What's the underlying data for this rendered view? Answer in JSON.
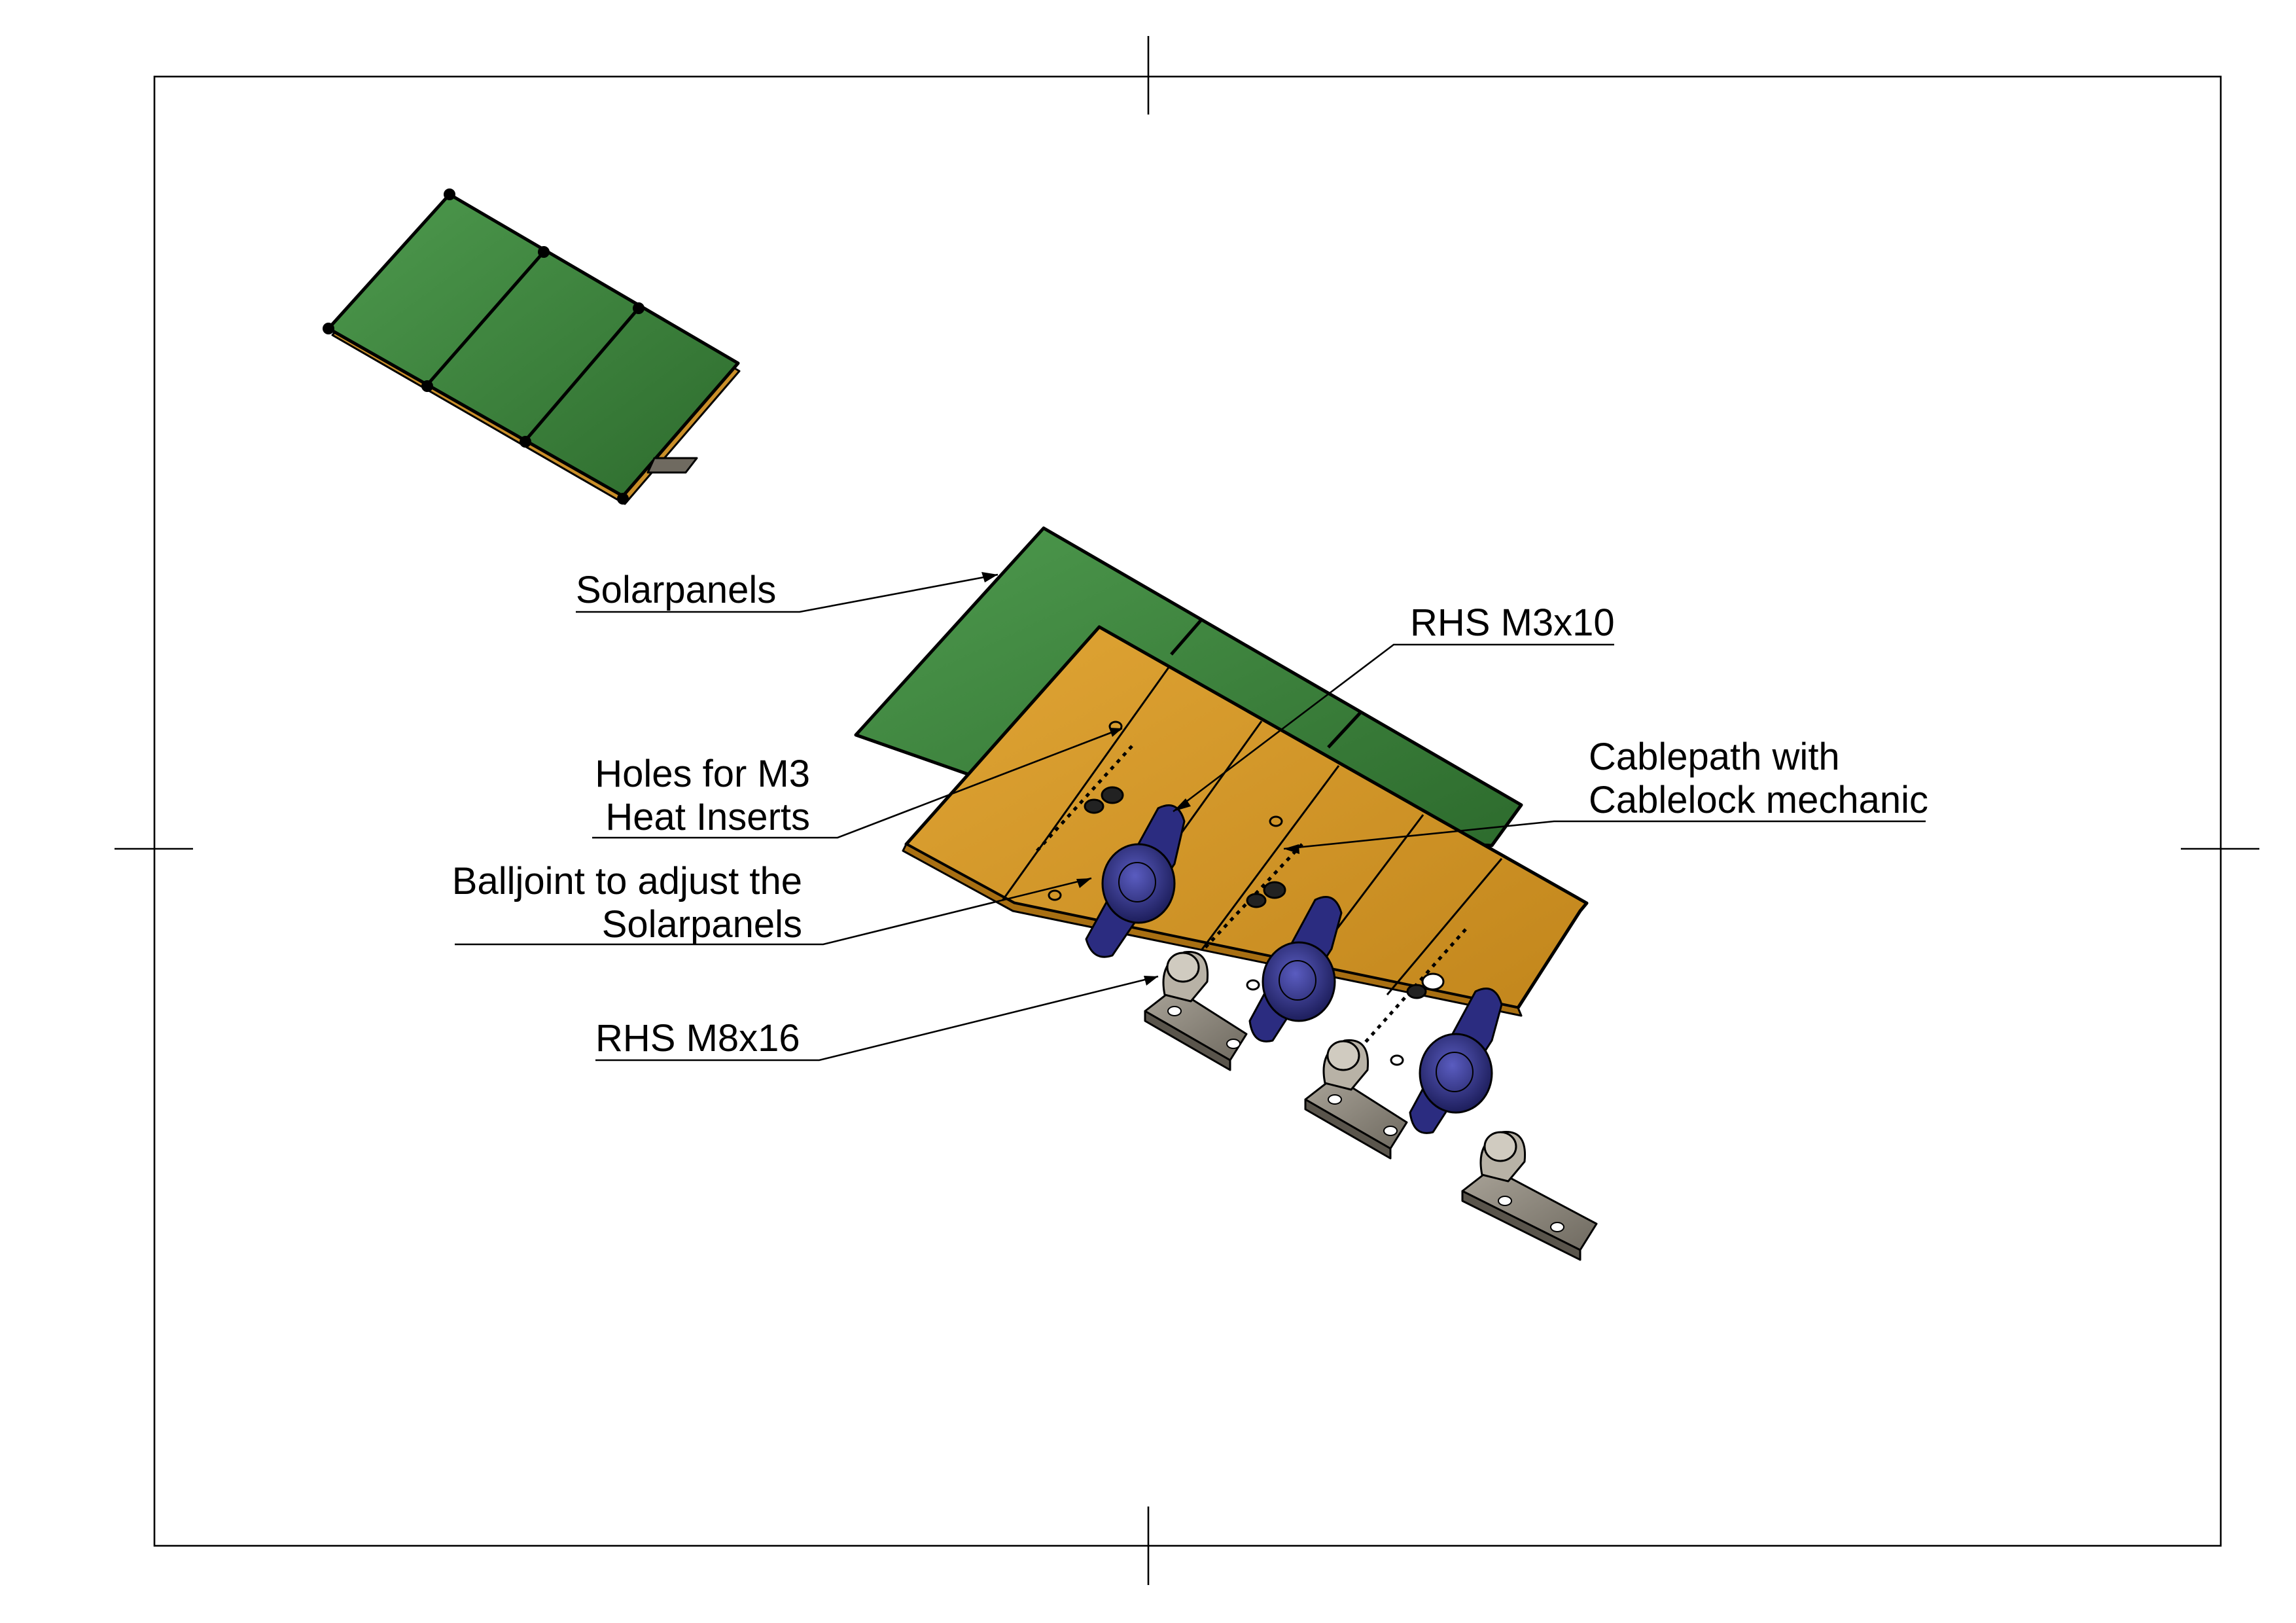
{
  "labels": {
    "solarpanels": "Solarpanels",
    "rhs_m3x10": "RHS M3x10",
    "holes_line1": "Holes for M3",
    "holes_line2": "Heat Inserts",
    "cablepath_line1": "Cablepath with",
    "cablepath_line2": "Cablelock mechanic",
    "balljoint_line1": "Balljoint to adjust the",
    "balljoint_line2": "Solarpanels",
    "rhs_m8x16": "RHS M8x16"
  },
  "colors": {
    "panel_green": "#3f8a3f",
    "panel_green_dark": "#2f6a2f",
    "frame_orange": "#d89a2a",
    "frame_orange_dark": "#b87d18",
    "mount_blue": "#2e2f86",
    "bracket_grey": "#8a8478",
    "line": "#000000"
  }
}
